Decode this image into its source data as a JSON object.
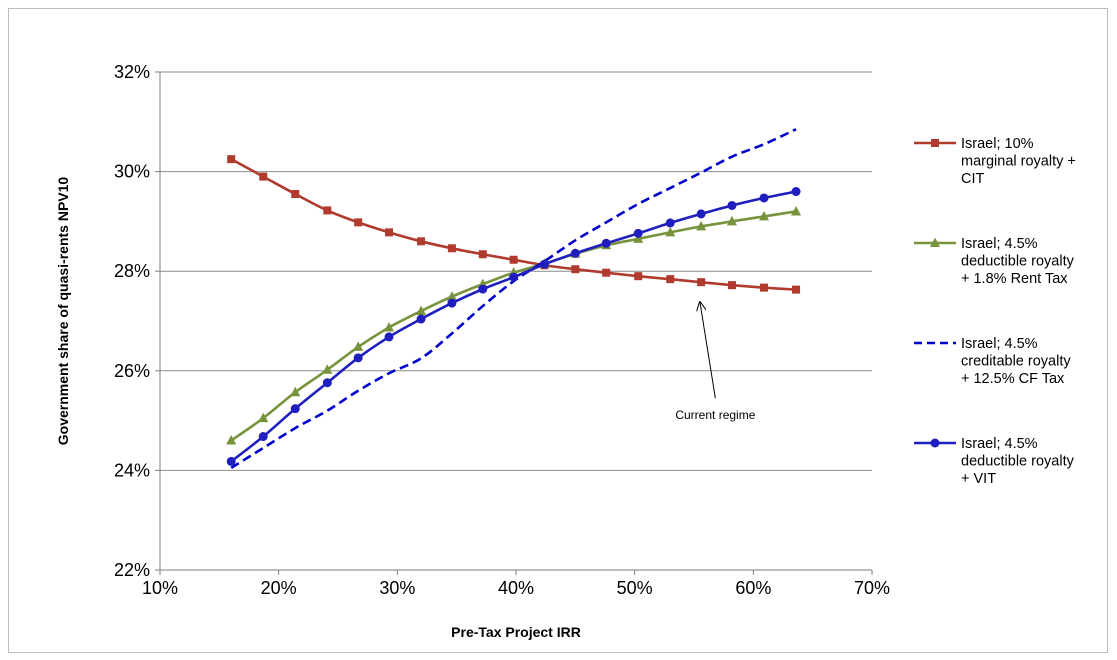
{
  "chart_data": {
    "type": "line",
    "title": "",
    "xlabel": "Pre-Tax Project IRR",
    "ylabel": "Government share of quasi-rents NPV10",
    "xlim": [
      10,
      70
    ],
    "ylim": [
      22,
      32
    ],
    "x_ticks": [
      "10%",
      "20%",
      "30%",
      "40%",
      "50%",
      "60%",
      "70%"
    ],
    "y_ticks": [
      "22%",
      "24%",
      "26%",
      "28%",
      "30%",
      "32%"
    ],
    "grid": "horizontal",
    "legend_position": "right",
    "x": [
      16.0,
      18.7,
      21.4,
      24.1,
      26.7,
      29.3,
      32.0,
      34.6,
      37.2,
      39.8,
      42.4,
      45.0,
      47.6,
      50.3,
      53.0,
      55.6,
      58.2,
      60.9,
      63.6
    ],
    "series": [
      {
        "name": "Israel; 10% marginal royalty + CIT",
        "legend_lines": [
          "Israel; 10%",
          "marginal royalty +",
          "CIT"
        ],
        "color": "#b03a2e",
        "marker": "square",
        "dash": "solid",
        "values": [
          30.25,
          29.9,
          29.55,
          29.22,
          28.98,
          28.78,
          28.6,
          28.46,
          28.34,
          28.23,
          28.12,
          28.04,
          27.97,
          27.9,
          27.84,
          27.78,
          27.72,
          27.67,
          27.63
        ]
      },
      {
        "name": "Israel; 4.5% deductible royalty + 1.8% Rent Tax",
        "legend_lines": [
          "Israel; 4.5%",
          "deductible royalty",
          "+ 1.8% Rent Tax"
        ],
        "color": "#77933c",
        "marker": "triangle",
        "dash": "solid",
        "values": [
          24.6,
          25.05,
          25.57,
          26.02,
          26.48,
          26.87,
          27.2,
          27.49,
          27.74,
          27.97,
          28.15,
          28.35,
          28.52,
          28.65,
          28.78,
          28.9,
          29.0,
          29.1,
          29.2
        ]
      },
      {
        "name": "Israel; 4.5% creditable royalty + 12.5% CF Tax",
        "legend_lines": [
          "Israel; 4.5%",
          "creditable royalty",
          "+ 12.5% CF Tax"
        ],
        "color": "#0000cc",
        "marker": "none",
        "dash": "dashed",
        "values": [
          24.05,
          24.45,
          24.85,
          25.2,
          25.6,
          25.95,
          26.25,
          26.75,
          27.3,
          27.8,
          28.2,
          28.62,
          28.98,
          29.35,
          29.67,
          29.98,
          30.3,
          30.55,
          30.85
        ]
      },
      {
        "name": "Israel; 4.5% deductible royalty + VIT",
        "legend_lines": [
          "Israel; 4.5%",
          "deductible royalty",
          "+ VIT"
        ],
        "color": "#1f1fbf",
        "marker": "circle",
        "dash": "solid",
        "values": [
          24.18,
          24.68,
          25.24,
          25.76,
          26.26,
          26.68,
          27.04,
          27.36,
          27.64,
          27.88,
          28.14,
          28.36,
          28.56,
          28.76,
          28.97,
          29.15,
          29.32,
          29.47,
          29.6
        ]
      }
    ],
    "annotation": {
      "text": "Current regime",
      "arrow_from": [
        56.8,
        25.45
      ],
      "arrow_to": [
        55.5,
        27.38
      ]
    }
  }
}
